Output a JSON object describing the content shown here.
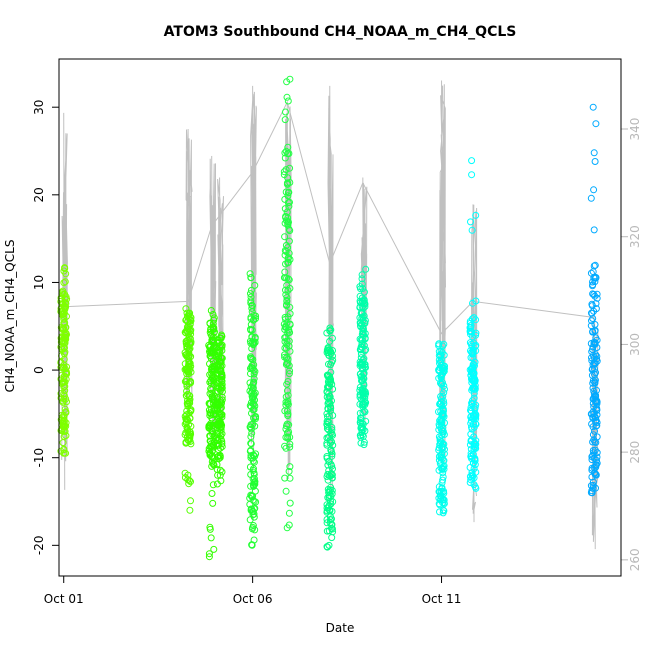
{
  "chart_data": {
    "type": "scatter",
    "title": "ATOM3 Southbound CH4_NOAA_m_CH4_QCLS",
    "xlabel": "Date",
    "ylabel": "CH4_NOAA_m_CH4_QCLS",
    "xlim": [
      "2017-09-30T21:00",
      "2017-10-15T18:00"
    ],
    "ylim": [
      -23.5,
      35.5
    ],
    "y2lim": [
      257,
      353
    ],
    "x_ticks": [
      {
        "label": "Oct 01",
        "date": "2017-10-01T00:00"
      },
      {
        "label": "Oct 06",
        "date": "2017-10-06T00:00"
      },
      {
        "label": "Oct 11",
        "date": "2017-10-11T00:00"
      }
    ],
    "y_ticks": [
      -20,
      -10,
      0,
      10,
      20,
      30
    ],
    "y2_ticks": [
      260,
      280,
      300,
      320,
      340
    ],
    "grid": false,
    "series": [
      {
        "color": "#7FFF00",
        "points": [
          {
            "x": "2017-10-01T00:00",
            "y_min": -9.5,
            "y_max": 11.7,
            "core_min": -7.0,
            "core_max": 9.0
          }
        ]
      },
      {
        "color": "#55FF00",
        "points": [
          {
            "x": "2017-10-04T07:00",
            "y_min": -16.0,
            "y_max": 7.0,
            "core_min": -8.5,
            "core_max": 6.0
          }
        ]
      },
      {
        "color": "#33FF00",
        "points": [
          {
            "x": "2017-10-04T22:00",
            "y_min": -21.3,
            "y_max": 6.8,
            "core_min": -11.0,
            "core_max": 5.0
          },
          {
            "x": "2017-10-05T03:00",
            "y_min": -13.0,
            "y_max": 4.0,
            "core_min": -10.0,
            "core_max": 3.0
          }
        ]
      },
      {
        "color": "#22FF33",
        "points": [
          {
            "x": "2017-10-06T00:00",
            "y_min": -20.0,
            "y_max": 11.0,
            "core_min": -17.0,
            "core_max": 8.0
          }
        ]
      },
      {
        "color": "#22FF44",
        "points": [
          {
            "x": "2017-10-06T22:00",
            "y_min": -18.0,
            "y_max": 33.2,
            "core_min": -9.0,
            "core_max": 25.0
          }
        ]
      },
      {
        "color": "#00FF88",
        "points": [
          {
            "x": "2017-10-08T01:00",
            "y_min": -20.2,
            "y_max": 4.8,
            "core_min": -18.0,
            "core_max": 3.0
          }
        ]
      },
      {
        "color": "#00FFAA",
        "points": [
          {
            "x": "2017-10-08T22:00",
            "y_min": -8.5,
            "y_max": 11.5,
            "core_min": -7.0,
            "core_max": 9.0
          }
        ]
      },
      {
        "color": "#00FFEE",
        "points": [
          {
            "x": "2017-10-11T00:00",
            "y_min": -16.3,
            "y_max": 3.0,
            "core_min": -15.0,
            "core_max": 2.0
          }
        ]
      },
      {
        "color": "#00FFFF",
        "points": [
          {
            "x": "2017-10-11T20:00",
            "y_min": -13.5,
            "y_max": 23.9,
            "core_min": -12.0,
            "core_max": 6.0
          }
        ]
      },
      {
        "color": "#00AAFF",
        "points": [
          {
            "x": "2017-10-15T01:00",
            "y_min": -14.0,
            "y_max": 30.0,
            "core_min": -12.0,
            "core_max": 12.0
          }
        ]
      }
    ],
    "secondary_line": {
      "color": "#c0c0c0",
      "segments": [
        {
          "x": "2017-10-01T00:00",
          "y_min": 273,
          "y_max": 343
        },
        {
          "x": "2017-10-04T07:00",
          "y_min": 287,
          "y_max": 340
        },
        {
          "x": "2017-10-04T22:00",
          "y_min": 280,
          "y_max": 335
        },
        {
          "x": "2017-10-05T03:00",
          "y_min": 285,
          "y_max": 331
        },
        {
          "x": "2017-10-06T00:00",
          "y_min": 278,
          "y_max": 348
        },
        {
          "x": "2017-10-06T22:00",
          "y_min": 275,
          "y_max": 345
        },
        {
          "x": "2017-10-08T01:00",
          "y_min": 270,
          "y_max": 348
        },
        {
          "x": "2017-10-08T22:00",
          "y_min": 285,
          "y_max": 331
        },
        {
          "x": "2017-10-11T00:00",
          "y_min": 278,
          "y_max": 349
        },
        {
          "x": "2017-10-11T20:00",
          "y_min": 267,
          "y_max": 326
        },
        {
          "x": "2017-10-15T01:00",
          "y_min": 262,
          "y_max": 305
        }
      ],
      "connector": [
        {
          "x": "2017-10-01T00:00",
          "y": 307
        },
        {
          "x": "2017-10-04T07:00",
          "y": 308
        },
        {
          "x": "2017-10-04T22:00",
          "y": 322
        },
        {
          "x": "2017-10-06T00:00",
          "y": 332
        },
        {
          "x": "2017-10-06T22:00",
          "y": 345
        },
        {
          "x": "2017-10-08T01:00",
          "y": 315
        },
        {
          "x": "2017-10-08T22:00",
          "y": 330
        },
        {
          "x": "2017-10-11T00:00",
          "y": 302
        },
        {
          "x": "2017-10-11T20:00",
          "y": 308
        },
        {
          "x": "2017-10-15T01:00",
          "y": 305
        }
      ]
    }
  }
}
